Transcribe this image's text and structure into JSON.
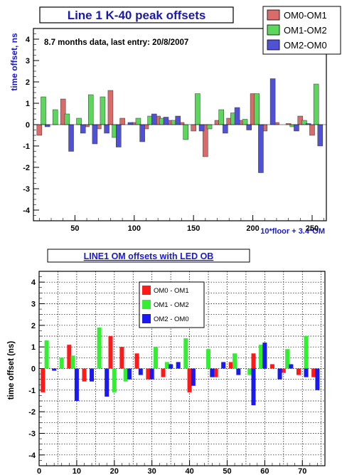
{
  "chart_data": [
    {
      "type": "bar",
      "title": "Line 1 K-40 peak offsets",
      "annotation": "8.7 months data, last entry: 20/8/2007",
      "xlabel": "10*floor + 3.4*OM",
      "ylabel": "time offset, ns",
      "xlim": [
        15,
        262
      ],
      "ylim": [
        -4.5,
        4.5
      ],
      "xticks": [
        50,
        100,
        150,
        200,
        250
      ],
      "yticks": [
        -4,
        -3,
        -2,
        -1,
        0,
        1,
        2,
        3,
        4
      ],
      "grid": false,
      "legend_position": "top-right",
      "series": [
        {
          "name": "OM0-OM1",
          "color": "#d96b6b",
          "x": [
            20,
            40,
            60,
            70,
            80,
            90,
            100,
            110,
            120,
            130,
            140,
            150,
            160,
            170,
            180,
            190,
            200,
            210,
            220,
            230,
            240,
            250
          ],
          "values": [
            -0.5,
            1.2,
            -0.1,
            -0.2,
            1.6,
            0.3,
            0.1,
            -0.2,
            0.4,
            0.2,
            0.1,
            -0.3,
            -1.5,
            0.2,
            0.3,
            0.2,
            1.45,
            -0.3,
            0.1,
            0.05,
            0.4,
            -0.5
          ]
        },
        {
          "name": "OM1-OM2",
          "color": "#5cd65c",
          "x": [
            23.4,
            33.4,
            43.4,
            53.4,
            63.4,
            73.4,
            83.4,
            103.4,
            113.4,
            123.4,
            133.4,
            143.4,
            153.4,
            163.4,
            173.4,
            183.4,
            193.4,
            203.4,
            233.4,
            243.4,
            253.4
          ],
          "values": [
            1.3,
            0.7,
            0.5,
            0.3,
            1.4,
            1.3,
            -0.6,
            0.3,
            0.4,
            0.3,
            0.2,
            -0.7,
            1.45,
            -0.2,
            0.7,
            0.55,
            0.25,
            1.45,
            -0.1,
            0.2,
            1.9
          ]
        },
        {
          "name": "OM2-OM0",
          "color": "#5151d6",
          "x": [
            26.8,
            46.8,
            56.8,
            66.8,
            76.8,
            86.8,
            96.8,
            106.8,
            116.8,
            126.8,
            136.8,
            156.8,
            176.8,
            186.8,
            196.8,
            206.8,
            216.8,
            236.8,
            246.8,
            256.8
          ],
          "values": [
            -0.1,
            -1.25,
            -0.4,
            -0.9,
            -0.4,
            -1.05,
            0.1,
            -0.8,
            0.5,
            0.35,
            0.4,
            -0.3,
            -0.4,
            0.8,
            -0.25,
            -2.25,
            2.15,
            -0.3,
            0.05,
            -1.0
          ]
        }
      ]
    },
    {
      "type": "bar",
      "title": "LINE1 OM offsets with LED OB",
      "xlabel": "",
      "ylabel": "time offset (ns)",
      "xlim": [
        0,
        76
      ],
      "ylim": [
        -4.5,
        4.5
      ],
      "xticks": [
        0,
        10,
        20,
        30,
        40,
        50,
        60,
        70
      ],
      "yticks": [
        -4,
        -3,
        -2,
        -1,
        0,
        1,
        2,
        3,
        4
      ],
      "grid": true,
      "legend_position": "top-center",
      "series": [
        {
          "name": "OM0 - OM1",
          "color": "#ff1a1a",
          "x": [
            1,
            8,
            12,
            19,
            22,
            26,
            29,
            33,
            40,
            47,
            51,
            57,
            62,
            65,
            69,
            73
          ],
          "values": [
            -1.1,
            1.1,
            -0.6,
            1.5,
            1.0,
            0.7,
            -0.5,
            -0.4,
            -1.1,
            -0.4,
            0.3,
            0.7,
            0.2,
            -0.2,
            -0.3,
            -0.4
          ]
        },
        {
          "name": "OM1 - OM2",
          "color": "#33ee33",
          "x": [
            2,
            6,
            9,
            16,
            20,
            23,
            31,
            34,
            39,
            45,
            52,
            56,
            59,
            66,
            71
          ],
          "values": [
            1.3,
            0.5,
            0.6,
            1.9,
            -1.1,
            -0.6,
            1.0,
            0.3,
            1.4,
            0.9,
            0.7,
            -0.3,
            1.1,
            0.9,
            1.5
          ]
        },
        {
          "name": "OM2 - OM0",
          "color": "#1a1aee",
          "x": [
            4,
            10,
            14,
            18,
            24,
            27,
            30,
            35,
            37,
            41,
            46,
            49,
            53,
            57,
            60,
            64,
            67,
            71,
            74
          ],
          "values": [
            -0.1,
            -1.5,
            -0.6,
            -1.3,
            -0.5,
            -0.3,
            -0.5,
            0.2,
            0.3,
            -0.8,
            -0.4,
            0.3,
            -0.3,
            -1.7,
            1.2,
            -0.5,
            0.2,
            -0.4,
            -1.0
          ]
        }
      ]
    }
  ]
}
